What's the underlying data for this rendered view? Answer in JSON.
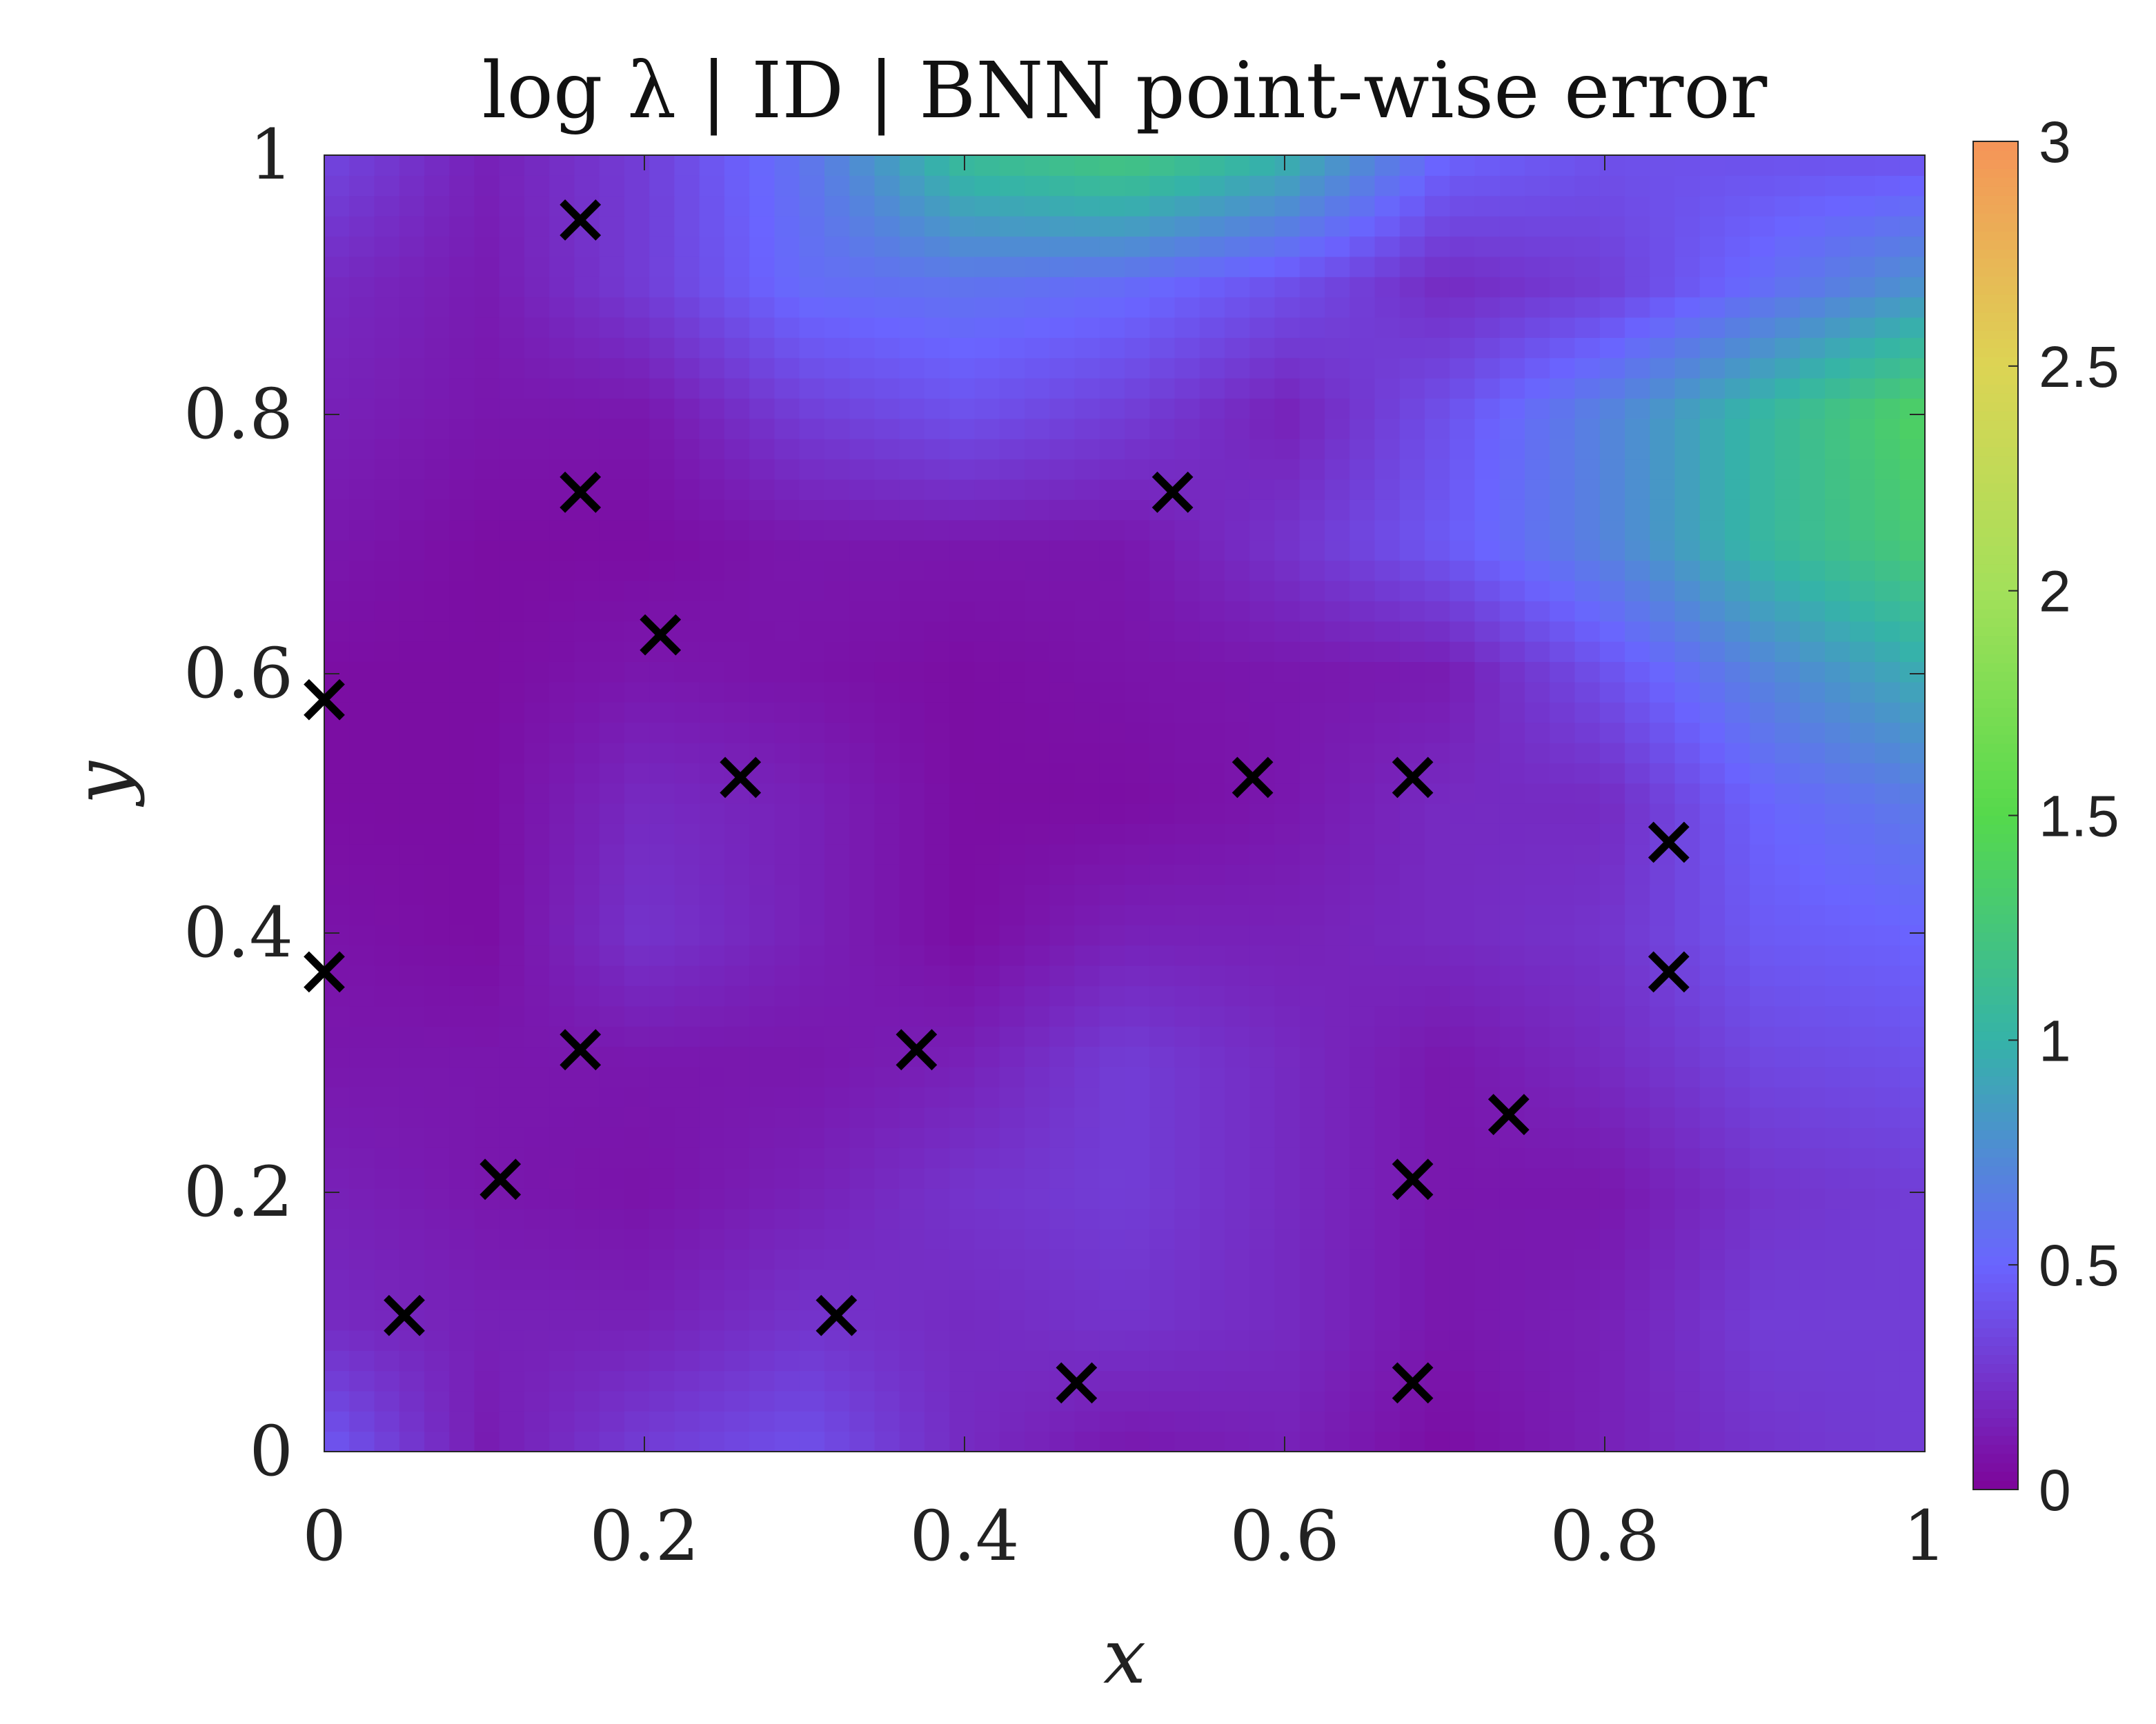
{
  "chart_data": {
    "type": "heatmap",
    "title": "log λ | ID | BNN point-wise error",
    "xlabel": "x",
    "ylabel": "y",
    "xlim": [
      0,
      1
    ],
    "ylim": [
      0,
      1
    ],
    "x_ticks": [
      0,
      0.2,
      0.4,
      0.6,
      0.8,
      1
    ],
    "x_tick_labels": [
      "0",
      "0.2",
      "0.4",
      "0.6",
      "0.8",
      "1"
    ],
    "y_ticks": [
      0,
      0.2,
      0.4,
      0.6,
      0.8,
      1
    ],
    "y_tick_labels": [
      "0",
      "0.2",
      "0.4",
      "0.6",
      "0.8",
      "1"
    ],
    "colorbar": {
      "range": [
        0,
        3
      ],
      "ticks": [
        0,
        0.5,
        1,
        1.5,
        2,
        2.5,
        3
      ],
      "tick_labels": [
        "0",
        "0.5",
        "1",
        "1.5",
        "2",
        "2.5",
        "3"
      ],
      "colormap_stops": [
        {
          "v": 0.0,
          "color": "#7d0499"
        },
        {
          "v": 0.5,
          "color": "#6a64ff"
        },
        {
          "v": 1.0,
          "color": "#35b3a8"
        },
        {
          "v": 1.5,
          "color": "#55d94c"
        },
        {
          "v": 2.0,
          "color": "#a3e05a"
        },
        {
          "v": 2.5,
          "color": "#dcd454"
        },
        {
          "v": 3.0,
          "color": "#f59458"
        }
      ]
    },
    "error_field": {
      "grid_x": [
        0,
        0.1,
        0.2,
        0.3,
        0.4,
        0.5,
        0.6,
        0.7,
        0.8,
        0.9,
        1.0
      ],
      "grid_y": [
        0,
        0.1,
        0.2,
        0.3,
        0.4,
        0.5,
        0.6,
        0.7,
        0.8,
        0.9,
        1.0
      ],
      "values": [
        [
          0.45,
          0.12,
          0.3,
          0.4,
          0.2,
          0.1,
          0.15,
          0.05,
          0.15,
          0.25,
          0.3
        ],
        [
          0.2,
          0.15,
          0.15,
          0.25,
          0.2,
          0.25,
          0.2,
          0.1,
          0.15,
          0.3,
          0.3
        ],
        [
          0.15,
          0.1,
          0.08,
          0.15,
          0.25,
          0.3,
          0.2,
          0.1,
          0.1,
          0.25,
          0.3
        ],
        [
          0.1,
          0.1,
          0.1,
          0.1,
          0.15,
          0.3,
          0.2,
          0.1,
          0.2,
          0.35,
          0.4
        ],
        [
          0.08,
          0.05,
          0.25,
          0.15,
          0.05,
          0.15,
          0.15,
          0.2,
          0.25,
          0.45,
          0.5
        ],
        [
          0.05,
          0.05,
          0.2,
          0.15,
          0.05,
          0.05,
          0.1,
          0.2,
          0.2,
          0.5,
          0.65
        ],
        [
          0.05,
          0.05,
          0.1,
          0.08,
          0.05,
          0.08,
          0.1,
          0.12,
          0.4,
          0.7,
          0.95
        ],
        [
          0.1,
          0.05,
          0.05,
          0.1,
          0.1,
          0.1,
          0.25,
          0.45,
          0.7,
          1.05,
          1.3
        ],
        [
          0.15,
          0.1,
          0.1,
          0.3,
          0.4,
          0.3,
          0.15,
          0.4,
          0.7,
          1.05,
          1.4
        ],
        [
          0.2,
          0.12,
          0.3,
          0.55,
          0.6,
          0.55,
          0.4,
          0.2,
          0.3,
          0.55,
          0.8
        ],
        [
          0.35,
          0.15,
          0.3,
          0.6,
          1.1,
          1.25,
          1.0,
          0.5,
          0.4,
          0.4,
          0.4
        ]
      ]
    },
    "markers": {
      "symbol": "x",
      "color": "#000000",
      "points": [
        {
          "x": 0.16,
          "y": 0.95
        },
        {
          "x": 0.16,
          "y": 0.74
        },
        {
          "x": 0.53,
          "y": 0.74
        },
        {
          "x": 0.21,
          "y": 0.63
        },
        {
          "x": 0.0,
          "y": 0.58
        },
        {
          "x": 0.26,
          "y": 0.52
        },
        {
          "x": 0.58,
          "y": 0.52
        },
        {
          "x": 0.68,
          "y": 0.52
        },
        {
          "x": 0.84,
          "y": 0.47
        },
        {
          "x": 0.0,
          "y": 0.37
        },
        {
          "x": 0.84,
          "y": 0.37
        },
        {
          "x": 0.16,
          "y": 0.31
        },
        {
          "x": 0.37,
          "y": 0.31
        },
        {
          "x": 0.74,
          "y": 0.26
        },
        {
          "x": 0.11,
          "y": 0.21
        },
        {
          "x": 0.68,
          "y": 0.21
        },
        {
          "x": 0.05,
          "y": 0.105
        },
        {
          "x": 0.32,
          "y": 0.105
        },
        {
          "x": 0.47,
          "y": 0.053
        },
        {
          "x": 0.68,
          "y": 0.053
        }
      ]
    }
  }
}
